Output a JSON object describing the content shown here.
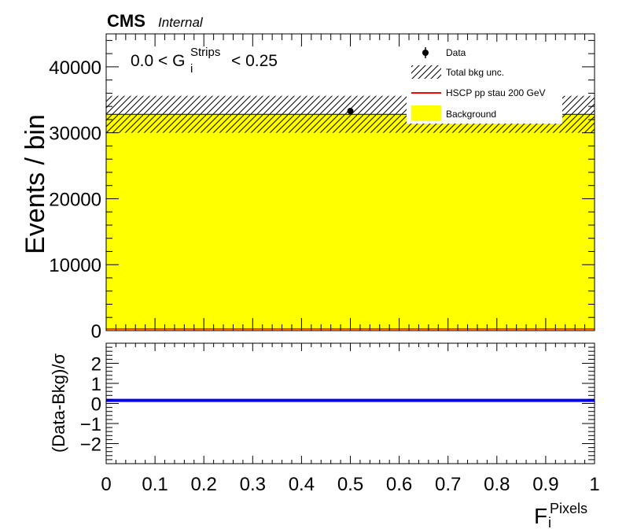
{
  "header": {
    "experiment": "CMS",
    "status": "Internal"
  },
  "cut_label": {
    "prefix": "0.0 < G",
    "sup": "Strips",
    "sub": "i",
    "suffix": "< 0.25"
  },
  "legend": [
    {
      "label": "Data",
      "kind": "marker",
      "color": "#000000"
    },
    {
      "label": "Total bkg unc.",
      "kind": "hatch",
      "color": "#000000"
    },
    {
      "label": "HSCP pp stau 200 GeV",
      "kind": "line",
      "color": "#ff0000"
    },
    {
      "label": "Background",
      "kind": "fill",
      "color": "#ffff00"
    }
  ],
  "colors": {
    "background": "#ffff00",
    "signal": "#ff0000",
    "data": "#000000",
    "ratio": "#0000ff"
  },
  "chart_data": [
    {
      "type": "bar",
      "panel": "main",
      "ylabel": "Events / bin",
      "xlim": [
        0,
        1
      ],
      "ylim": [
        0,
        45000
      ],
      "yticks": [
        0,
        10000,
        20000,
        30000,
        40000
      ],
      "series": [
        {
          "name": "Background",
          "kind": "stacked-fill",
          "bins": [
            [
              0,
              1,
              32800
            ]
          ]
        },
        {
          "name": "Total bkg unc.",
          "kind": "hatched-band",
          "bins": [
            [
              0,
              1,
              30000,
              35600
            ]
          ]
        },
        {
          "name": "HSCP pp stau 200 GeV",
          "kind": "line",
          "bins": [
            [
              0,
              1,
              250
            ]
          ]
        },
        {
          "name": "Data",
          "kind": "points",
          "points": [
            [
              0.5,
              33300
            ]
          ]
        }
      ]
    },
    {
      "type": "line",
      "panel": "ratio",
      "ylabel": "(Data-Bkg)/σ",
      "xlabel_main": "F",
      "xlabel_sup": "Pixels",
      "xlabel_sub": "i",
      "xlim": [
        0,
        1
      ],
      "ylim": [
        -3,
        3
      ],
      "yticks": [
        -2,
        -1,
        0,
        1,
        2
      ],
      "xticks": [
        0,
        0.1,
        0.2,
        0.3,
        0.4,
        0.5,
        0.6,
        0.7,
        0.8,
        0.9,
        1
      ],
      "series": [
        {
          "name": "(Data-Bkg)/σ",
          "values": [
            [
              0,
              0.15
            ],
            [
              1,
              0.15
            ]
          ]
        }
      ]
    }
  ]
}
